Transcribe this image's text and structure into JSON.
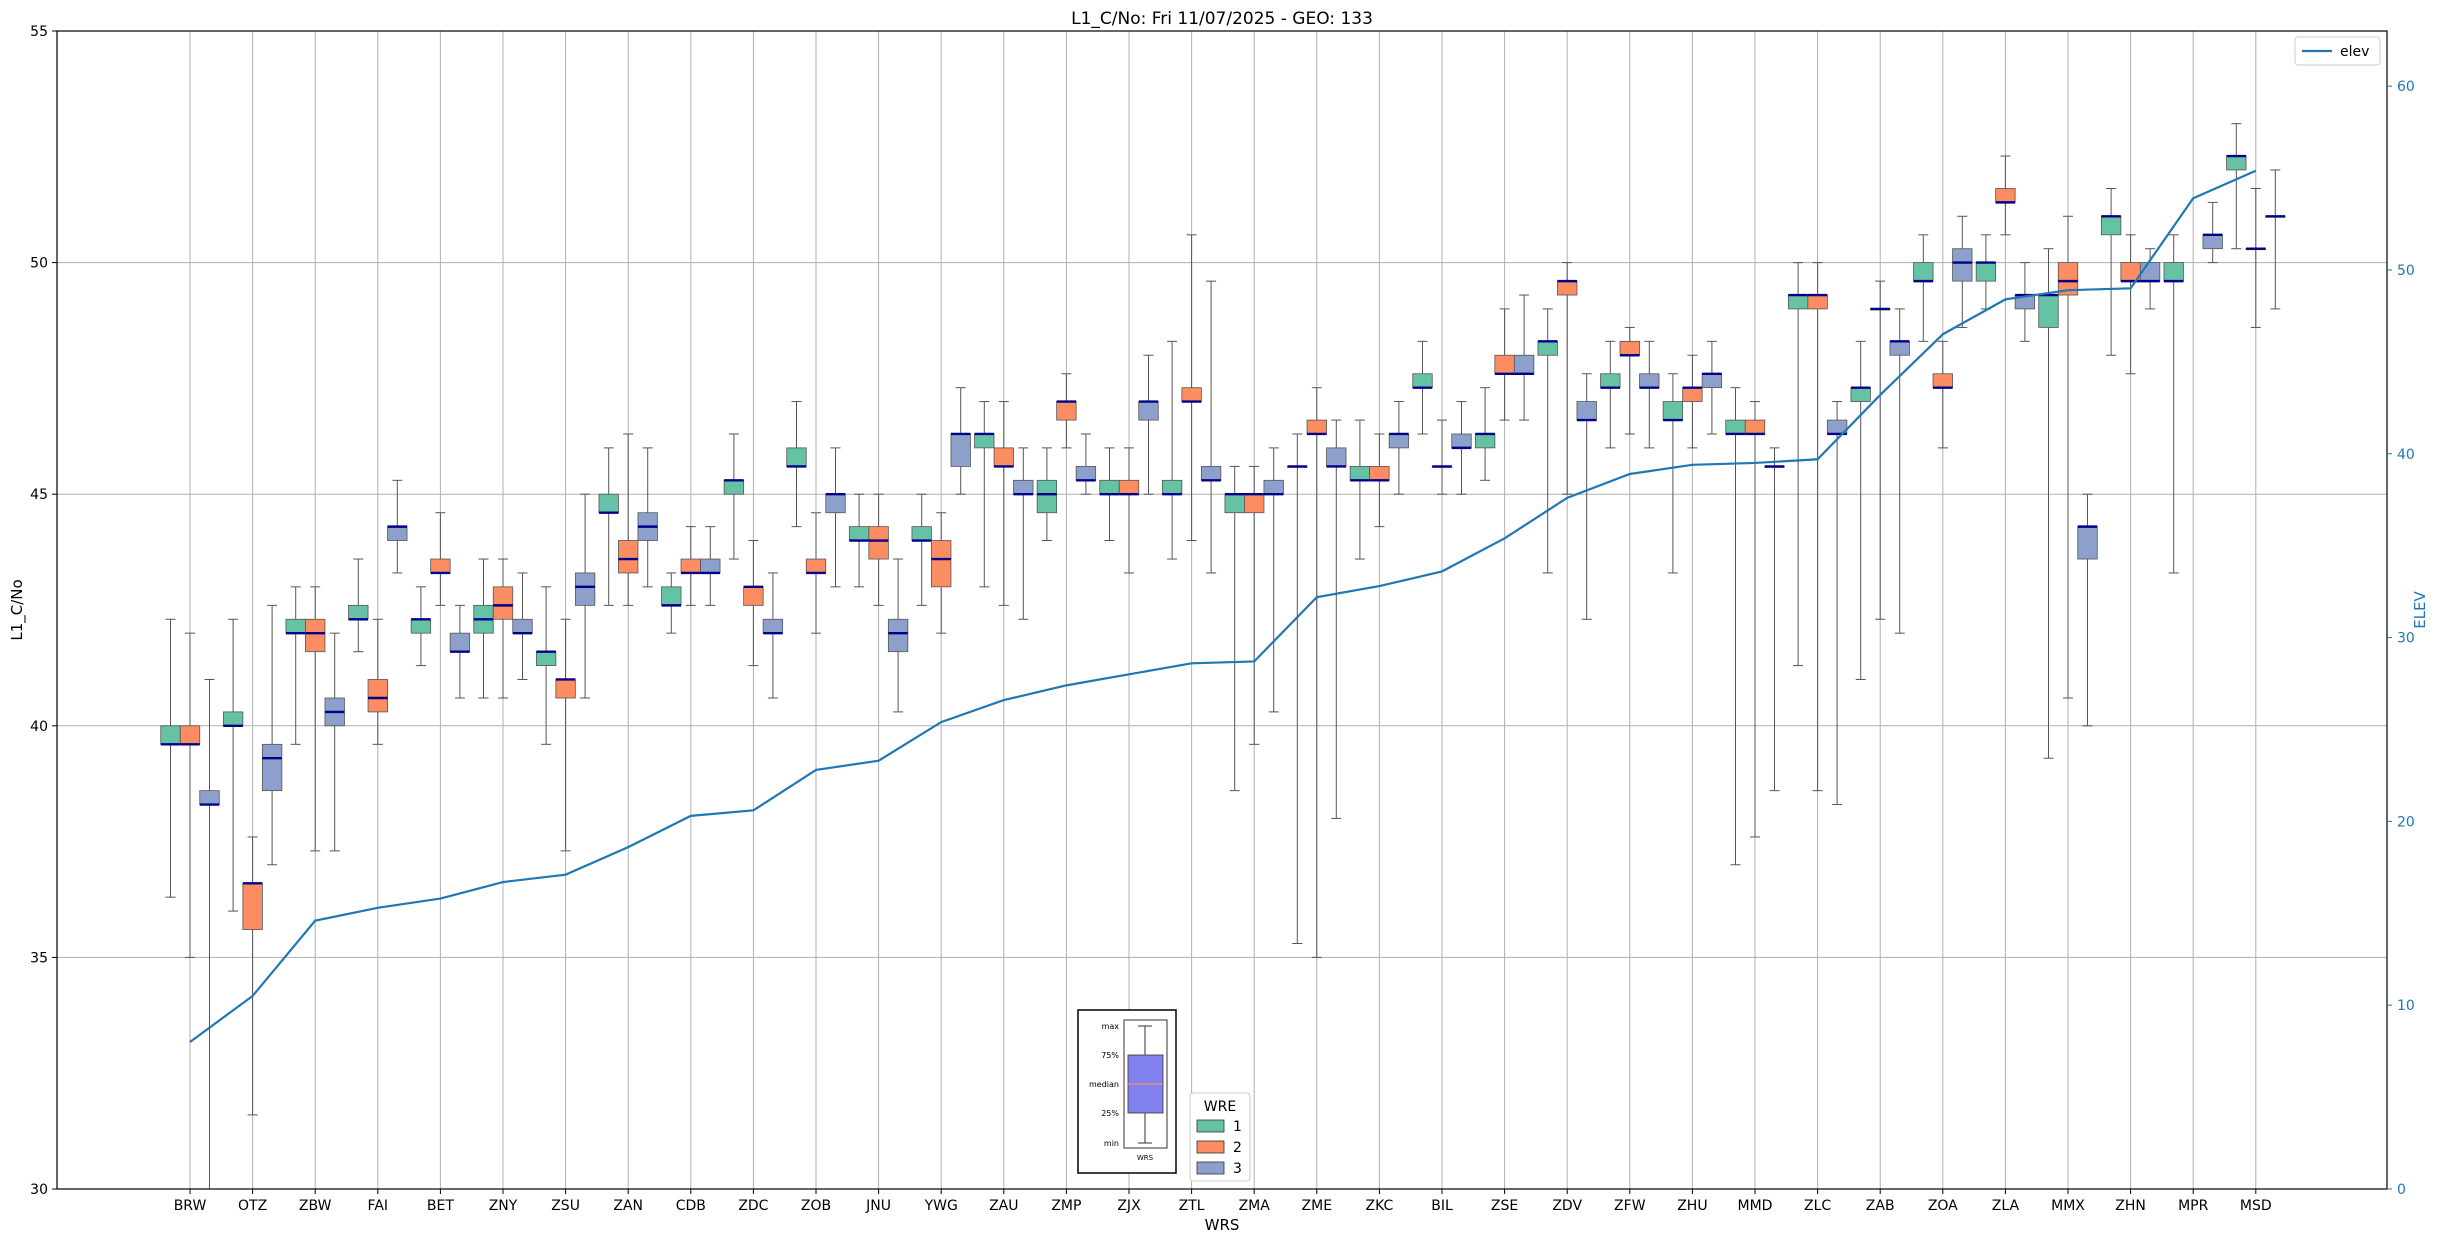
{
  "chart_data": {
    "type": "box",
    "title": "L1_C/No: Fri 11/07/2025 - GEO: 133",
    "xlabel": "WRS",
    "ylabel": "L1_C/No",
    "y2label": "ELEV",
    "ylim": [
      30,
      55
    ],
    "yticks": [
      30,
      35,
      40,
      45,
      50,
      55
    ],
    "y2lim": [
      0,
      63
    ],
    "y2ticks": [
      0,
      10,
      20,
      30,
      40,
      50,
      60
    ],
    "grid": true,
    "colors": {
      "1": "#66c2a5",
      "2": "#fc8d62",
      "3": "#8da0cb",
      "median": "#00008b",
      "elev": "#1f77b4",
      "whisker": "#555555"
    },
    "legend_elev": {
      "label": "elev",
      "placement": "top-right"
    },
    "legend_wre": {
      "title": "WRE",
      "labels": [
        "1",
        "2",
        "3"
      ],
      "placement": "bottom-center"
    },
    "key_box": {
      "labels": [
        "max",
        "75%",
        "median",
        "25%",
        "min"
      ],
      "xlabel": "WRS"
    },
    "categories": [
      "BRW",
      "OTZ",
      "ZBW",
      "FAI",
      "BET",
      "ZNY",
      "ZSU",
      "ZAN",
      "CDB",
      "ZDC",
      "ZOB",
      "JNU",
      "YWG",
      "ZAU",
      "ZMP",
      "ZJX",
      "ZTL",
      "ZMA",
      "ZME",
      "ZKC",
      "BIL",
      "ZSE",
      "ZDV",
      "ZFW",
      "ZHU",
      "MMD",
      "ZLC",
      "ZAB",
      "ZOA",
      "ZLA",
      "MMX",
      "ZHN",
      "MPR",
      "MSD"
    ],
    "elev": [
      8,
      10.5,
      14.6,
      15.3,
      15.8,
      16.7,
      17.1,
      18.6,
      20.3,
      20.6,
      22.8,
      23.3,
      25.4,
      26.6,
      27.4,
      28,
      28.6,
      28.7,
      32.2,
      32.8,
      33.6,
      35.4,
      37.6,
      38.9,
      39.4,
      39.5,
      39.7,
      43.2,
      46.5,
      48.4,
      48.9,
      49,
      53.9,
      55.4
    ],
    "boxes": [
      [
        {
          "wre": 1,
          "min": 36.3,
          "q1": 39.6,
          "median": 39.6,
          "q3": 40,
          "max": 42.3
        },
        {
          "wre": 2,
          "min": 35,
          "q1": 39.6,
          "median": 39.6,
          "q3": 40,
          "max": 42
        },
        {
          "wre": 3,
          "min": 30,
          "q1": 38.3,
          "median": 38.3,
          "q3": 38.6,
          "max": 41
        }
      ],
      [
        {
          "wre": 1,
          "min": 36,
          "q1": 40,
          "median": 40,
          "q3": 40.3,
          "max": 42.3
        },
        {
          "wre": 2,
          "min": 31.6,
          "q1": 35.6,
          "median": 36.6,
          "q3": 36.6,
          "max": 37.6
        },
        {
          "wre": 3,
          "min": 37,
          "q1": 38.6,
          "median": 39.3,
          "q3": 39.6,
          "max": 42.6
        }
      ],
      [
        {
          "wre": 1,
          "min": 39.6,
          "q1": 42,
          "median": 42,
          "q3": 42.3,
          "max": 43
        },
        {
          "wre": 2,
          "min": 37.3,
          "q1": 41.6,
          "median": 42,
          "q3": 42.3,
          "max": 43
        },
        {
          "wre": 3,
          "min": 37.3,
          "q1": 40,
          "median": 40.3,
          "q3": 40.6,
          "max": 42
        }
      ],
      [
        {
          "wre": 1,
          "min": 41.6,
          "q1": 42.3,
          "median": 42.3,
          "q3": 42.6,
          "max": 43.6
        },
        {
          "wre": 2,
          "min": 39.6,
          "q1": 40.3,
          "median": 40.6,
          "q3": 41,
          "max": 42.3
        },
        {
          "wre": 3,
          "min": 43.3,
          "q1": 44,
          "median": 44.3,
          "q3": 44.3,
          "max": 45.3
        }
      ],
      [
        {
          "wre": 1,
          "min": 41.3,
          "q1": 42,
          "median": 42.3,
          "q3": 42.3,
          "max": 43
        },
        {
          "wre": 2,
          "min": 42.6,
          "q1": 43.3,
          "median": 43.3,
          "q3": 43.6,
          "max": 44.6
        },
        {
          "wre": 3,
          "min": 40.6,
          "q1": 41.6,
          "median": 41.6,
          "q3": 42,
          "max": 42.6
        }
      ],
      [
        {
          "wre": 1,
          "min": 40.6,
          "q1": 42,
          "median": 42.3,
          "q3": 42.6,
          "max": 43.6
        },
        {
          "wre": 2,
          "min": 40.6,
          "q1": 42.3,
          "median": 42.6,
          "q3": 43,
          "max": 43.6
        },
        {
          "wre": 3,
          "min": 41,
          "q1": 42,
          "median": 42,
          "q3": 42.3,
          "max": 43.3
        }
      ],
      [
        {
          "wre": 1,
          "min": 39.6,
          "q1": 41.3,
          "median": 41.6,
          "q3": 41.6,
          "max": 43
        },
        {
          "wre": 2,
          "min": 37.3,
          "q1": 40.6,
          "median": 41,
          "q3": 41,
          "max": 42.3
        },
        {
          "wre": 3,
          "min": 40.6,
          "q1": 42.6,
          "median": 43,
          "q3": 43.3,
          "max": 45
        }
      ],
      [
        {
          "wre": 1,
          "min": 42.6,
          "q1": 44.6,
          "median": 44.6,
          "q3": 45,
          "max": 46
        },
        {
          "wre": 2,
          "min": 42.6,
          "q1": 43.3,
          "median": 43.6,
          "q3": 44,
          "max": 46.3
        },
        {
          "wre": 3,
          "min": 43,
          "q1": 44,
          "median": 44.3,
          "q3": 44.6,
          "max": 46
        }
      ],
      [
        {
          "wre": 1,
          "min": 42,
          "q1": 42.6,
          "median": 42.6,
          "q3": 43,
          "max": 43.3
        },
        {
          "wre": 2,
          "min": 42.6,
          "q1": 43.3,
          "median": 43.3,
          "q3": 43.6,
          "max": 44.3
        },
        {
          "wre": 3,
          "min": 42.6,
          "q1": 43.3,
          "median": 43.3,
          "q3": 43.6,
          "max": 44.3
        }
      ],
      [
        {
          "wre": 1,
          "min": 43.6,
          "q1": 45,
          "median": 45.3,
          "q3": 45.3,
          "max": 46.3
        },
        {
          "wre": 2,
          "min": 41.3,
          "q1": 42.6,
          "median": 43,
          "q3": 43,
          "max": 44
        },
        {
          "wre": 3,
          "min": 40.6,
          "q1": 42,
          "median": 42,
          "q3": 42.3,
          "max": 43.3
        }
      ],
      [
        {
          "wre": 1,
          "min": 44.3,
          "q1": 45.6,
          "median": 45.6,
          "q3": 46,
          "max": 47
        },
        {
          "wre": 2,
          "min": 42,
          "q1": 43.3,
          "median": 43.3,
          "q3": 43.6,
          "max": 44.6
        },
        {
          "wre": 3,
          "min": 43,
          "q1": 44.6,
          "median": 45,
          "q3": 45,
          "max": 46
        }
      ],
      [
        {
          "wre": 1,
          "min": 43,
          "q1": 44,
          "median": 44,
          "q3": 44.3,
          "max": 45
        },
        {
          "wre": 2,
          "min": 42.6,
          "q1": 43.6,
          "median": 44,
          "q3": 44.3,
          "max": 45
        },
        {
          "wre": 3,
          "min": 40.3,
          "q1": 41.6,
          "median": 42,
          "q3": 42.3,
          "max": 43.6
        }
      ],
      [
        {
          "wre": 1,
          "min": 42.6,
          "q1": 44,
          "median": 44,
          "q3": 44.3,
          "max": 45
        },
        {
          "wre": 2,
          "min": 42,
          "q1": 43,
          "median": 43.6,
          "q3": 44,
          "max": 44.6
        },
        {
          "wre": 3,
          "min": 45,
          "q1": 45.6,
          "median": 46.3,
          "q3": 46.3,
          "max": 47.3
        }
      ],
      [
        {
          "wre": 1,
          "min": 43,
          "q1": 46,
          "median": 46.3,
          "q3": 46.3,
          "max": 47
        },
        {
          "wre": 2,
          "min": 42.6,
          "q1": 45.6,
          "median": 45.6,
          "q3": 46,
          "max": 47
        },
        {
          "wre": 3,
          "min": 42.3,
          "q1": 45,
          "median": 45,
          "q3": 45.3,
          "max": 46
        }
      ],
      [
        {
          "wre": 1,
          "min": 44,
          "q1": 44.6,
          "median": 45,
          "q3": 45.3,
          "max": 46
        },
        {
          "wre": 2,
          "min": 46,
          "q1": 46.6,
          "median": 47,
          "q3": 47,
          "max": 47.6
        },
        {
          "wre": 3,
          "min": 45,
          "q1": 45.3,
          "median": 45.3,
          "q3": 45.6,
          "max": 46.3
        }
      ],
      [
        {
          "wre": 1,
          "min": 44,
          "q1": 45,
          "median": 45,
          "q3": 45.3,
          "max": 46
        },
        {
          "wre": 2,
          "min": 43.3,
          "q1": 45,
          "median": 45,
          "q3": 45.3,
          "max": 46
        },
        {
          "wre": 3,
          "min": 45,
          "q1": 46.6,
          "median": 47,
          "q3": 47,
          "max": 48
        }
      ],
      [
        {
          "wre": 1,
          "min": 43.6,
          "q1": 45,
          "median": 45,
          "q3": 45.3,
          "max": 48.3
        },
        {
          "wre": 2,
          "min": 44,
          "q1": 47,
          "median": 47,
          "q3": 47.3,
          "max": 50.6
        },
        {
          "wre": 3,
          "min": 43.3,
          "q1": 45.3,
          "median": 45.3,
          "q3": 45.6,
          "max": 49.6
        }
      ],
      [
        {
          "wre": 1,
          "min": 38.6,
          "q1": 44.6,
          "median": 45,
          "q3": 45,
          "max": 45.6
        },
        {
          "wre": 2,
          "min": 39.6,
          "q1": 44.6,
          "median": 45,
          "q3": 45,
          "max": 45.6
        },
        {
          "wre": 3,
          "min": 40.3,
          "q1": 45,
          "median": 45,
          "q3": 45.3,
          "max": 46
        }
      ],
      [
        {
          "wre": 1,
          "min": 35.3,
          "q1": 45.6,
          "median": 45.6,
          "q3": 45.6,
          "max": 46.3
        },
        {
          "wre": 2,
          "min": 35,
          "q1": 46.3,
          "median": 46.3,
          "q3": 46.6,
          "max": 47.3
        },
        {
          "wre": 3,
          "min": 38,
          "q1": 45.6,
          "median": 45.6,
          "q3": 46,
          "max": 46.6
        }
      ],
      [
        {
          "wre": 1,
          "min": 43.6,
          "q1": 45.3,
          "median": 45.3,
          "q3": 45.6,
          "max": 46.6
        },
        {
          "wre": 2,
          "min": 44.3,
          "q1": 45.3,
          "median": 45.3,
          "q3": 45.6,
          "max": 46.3
        },
        {
          "wre": 3,
          "min": 45,
          "q1": 46,
          "median": 46.3,
          "q3": 46.3,
          "max": 47
        }
      ],
      [
        {
          "wre": 1,
          "min": 46.3,
          "q1": 47.3,
          "median": 47.3,
          "q3": 47.6,
          "max": 48.3
        },
        {
          "wre": 2,
          "min": 45,
          "q1": 45.6,
          "median": 45.6,
          "q3": 45.6,
          "max": 46.6
        },
        {
          "wre": 3,
          "min": 45,
          "q1": 46,
          "median": 46,
          "q3": 46.3,
          "max": 47
        }
      ],
      [
        {
          "wre": 1,
          "min": 45.3,
          "q1": 46,
          "median": 46.3,
          "q3": 46.3,
          "max": 47.3
        },
        {
          "wre": 2,
          "min": 46.6,
          "q1": 47.6,
          "median": 47.6,
          "q3": 48,
          "max": 49
        },
        {
          "wre": 3,
          "min": 46.6,
          "q1": 47.6,
          "median": 47.6,
          "q3": 48,
          "max": 49.3
        }
      ],
      [
        {
          "wre": 1,
          "min": 43.3,
          "q1": 48,
          "median": 48.3,
          "q3": 48.3,
          "max": 49
        },
        {
          "wre": 2,
          "min": 45,
          "q1": 49.3,
          "median": 49.6,
          "q3": 49.6,
          "max": 50
        },
        {
          "wre": 3,
          "min": 42.3,
          "q1": 46.6,
          "median": 46.6,
          "q3": 47,
          "max": 47.6
        }
      ],
      [
        {
          "wre": 1,
          "min": 46,
          "q1": 47.3,
          "median": 47.3,
          "q3": 47.6,
          "max": 48.3
        },
        {
          "wre": 2,
          "min": 46.3,
          "q1": 48,
          "median": 48,
          "q3": 48.3,
          "max": 48.6
        },
        {
          "wre": 3,
          "min": 46,
          "q1": 47.3,
          "median": 47.3,
          "q3": 47.6,
          "max": 48.3
        }
      ],
      [
        {
          "wre": 1,
          "min": 43.3,
          "q1": 46.6,
          "median": 46.6,
          "q3": 47,
          "max": 47.6
        },
        {
          "wre": 2,
          "min": 46,
          "q1": 47,
          "median": 47.3,
          "q3": 47.3,
          "max": 48
        },
        {
          "wre": 3,
          "min": 46.3,
          "q1": 47.3,
          "median": 47.6,
          "q3": 47.6,
          "max": 48.3
        }
      ],
      [
        {
          "wre": 1,
          "min": 37,
          "q1": 46.3,
          "median": 46.3,
          "q3": 46.6,
          "max": 47.3
        },
        {
          "wre": 2,
          "min": 37.6,
          "q1": 46.3,
          "median": 46.3,
          "q3": 46.6,
          "max": 47
        },
        {
          "wre": 3,
          "min": 38.6,
          "q1": 45.6,
          "median": 45.6,
          "q3": 45.6,
          "max": 46
        }
      ],
      [
        {
          "wre": 1,
          "min": 41.3,
          "q1": 49,
          "median": 49.3,
          "q3": 49.3,
          "max": 50
        },
        {
          "wre": 2,
          "min": 38.6,
          "q1": 49,
          "median": 49.3,
          "q3": 49.3,
          "max": 50
        },
        {
          "wre": 3,
          "min": 38.3,
          "q1": 46.3,
          "median": 46.3,
          "q3": 46.6,
          "max": 47
        }
      ],
      [
        {
          "wre": 1,
          "min": 41,
          "q1": 47,
          "median": 47.3,
          "q3": 47.3,
          "max": 48.3
        },
        {
          "wre": 2,
          "min": 42.3,
          "q1": 49,
          "median": 49,
          "q3": 49,
          "max": 49.6
        },
        {
          "wre": 3,
          "min": 42,
          "q1": 48,
          "median": 48.3,
          "q3": 48.3,
          "max": 49
        }
      ],
      [
        {
          "wre": 1,
          "min": 48.3,
          "q1": 49.6,
          "median": 49.6,
          "q3": 50,
          "max": 50.6
        },
        {
          "wre": 2,
          "min": 46,
          "q1": 47.3,
          "median": 47.3,
          "q3": 47.6,
          "max": 48.3
        },
        {
          "wre": 3,
          "min": 48.6,
          "q1": 49.6,
          "median": 50,
          "q3": 50.3,
          "max": 51
        }
      ],
      [
        {
          "wre": 1,
          "min": 49,
          "q1": 49.6,
          "median": 50,
          "q3": 50,
          "max": 50.6
        },
        {
          "wre": 2,
          "min": 50.6,
          "q1": 51.3,
          "median": 51.3,
          "q3": 51.6,
          "max": 52.3
        },
        {
          "wre": 3,
          "min": 48.3,
          "q1": 49,
          "median": 49.3,
          "q3": 49.3,
          "max": 50
        }
      ],
      [
        {
          "wre": 1,
          "min": 39.3,
          "q1": 48.6,
          "median": 49.3,
          "q3": 49.3,
          "max": 50.3
        },
        {
          "wre": 2,
          "min": 40.6,
          "q1": 49.3,
          "median": 49.6,
          "q3": 50,
          "max": 51
        },
        {
          "wre": 3,
          "min": 40,
          "q1": 43.6,
          "median": 44.3,
          "q3": 44.3,
          "max": 45
        }
      ],
      [
        {
          "wre": 1,
          "min": 48,
          "q1": 50.6,
          "median": 51,
          "q3": 51,
          "max": 51.6
        },
        {
          "wre": 2,
          "min": 47.6,
          "q1": 49.6,
          "median": 49.6,
          "q3": 50,
          "max": 50.6
        },
        {
          "wre": 3,
          "min": 49,
          "q1": 49.6,
          "median": 49.6,
          "q3": 50,
          "max": 50.3
        }
      ],
      [
        {
          "wre": 1,
          "min": 43.3,
          "q1": 49.6,
          "median": 49.6,
          "q3": 50,
          "max": 50.6
        },
        {
          "wre": 3,
          "min": 50,
          "q1": 50.3,
          "median": 50.6,
          "q3": 50.6,
          "max": 51.3
        }
      ],
      [
        {
          "wre": 1,
          "min": 50.3,
          "q1": 52,
          "median": 52.3,
          "q3": 52.3,
          "max": 53
        },
        {
          "wre": 2,
          "min": 48.6,
          "q1": 50.3,
          "median": 50.3,
          "q3": 50.3,
          "max": 51.6
        },
        {
          "wre": 3,
          "min": 49,
          "q1": 51,
          "median": 51,
          "q3": 51,
          "max": 52
        }
      ]
    ]
  }
}
